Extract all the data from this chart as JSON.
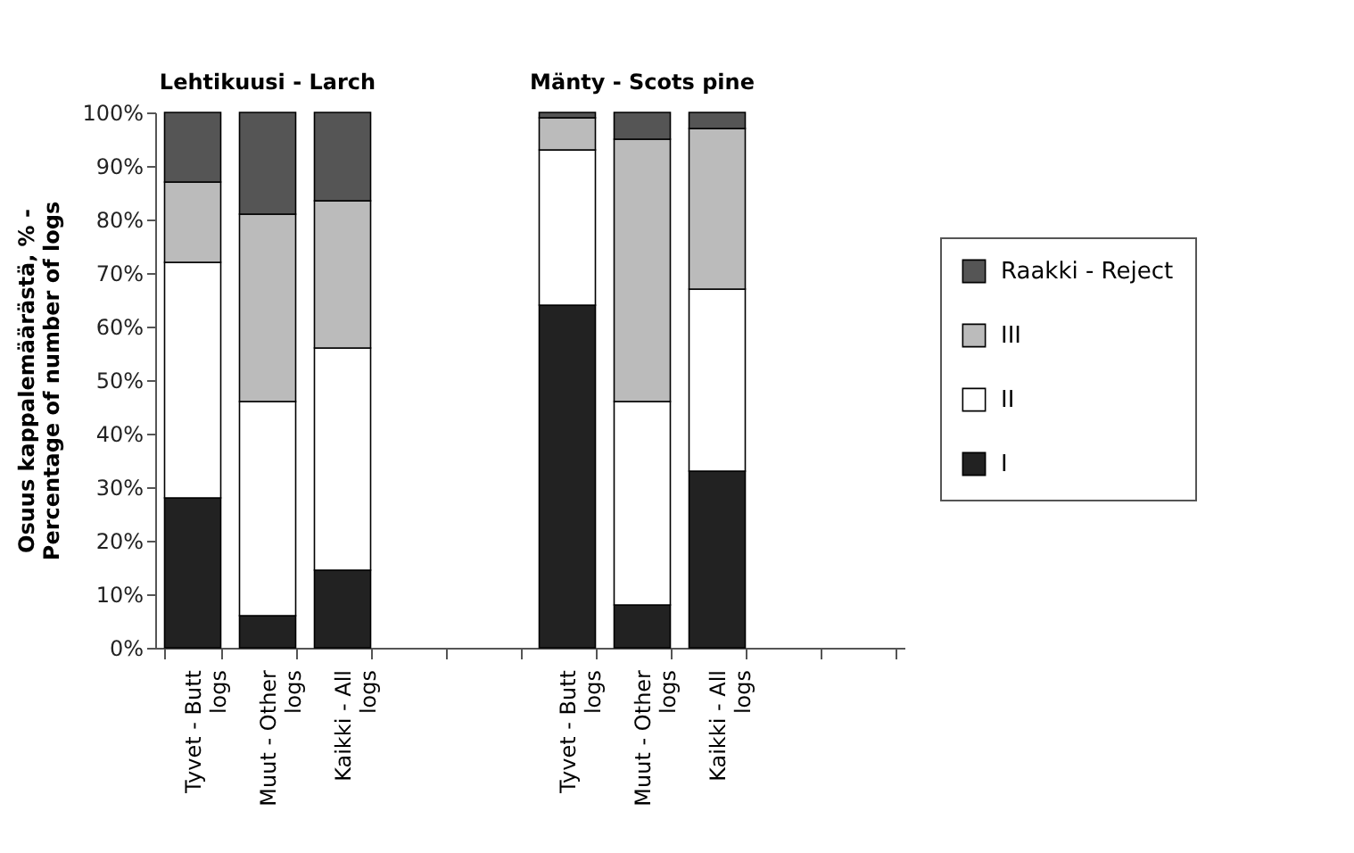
{
  "chart_data": {
    "type": "bar",
    "stacked": true,
    "ylabel": "Osuus kappalemäärästä, % - Percentage of number of logs",
    "annotations": [
      "Lehtikuusi - Larch",
      "Mänty - Scots pine"
    ],
    "categories": [
      "Tyvet - Butt logs",
      "Muut - Other logs",
      "Kaikki - All logs",
      null,
      null,
      "Tyvet - Butt logs",
      "Muut - Other logs",
      "Kaikki - All logs",
      null,
      null
    ],
    "series": [
      {
        "name": "I",
        "color": "#222222",
        "values": [
          28,
          6,
          14.5,
          null,
          null,
          64,
          8,
          33,
          null,
          null
        ]
      },
      {
        "name": "II",
        "color": "#ffffff",
        "values": [
          44,
          40,
          41.5,
          null,
          null,
          29,
          38,
          34,
          null,
          null
        ]
      },
      {
        "name": "III",
        "color": "#bbbbbb",
        "values": [
          15,
          35,
          27.5,
          null,
          null,
          6,
          49,
          30,
          null,
          null
        ]
      },
      {
        "name": "Raakki - Reject",
        "color": "#555555",
        "values": [
          13,
          19,
          16.5,
          null,
          null,
          1,
          5,
          3,
          null,
          null
        ]
      }
    ],
    "ylim": [
      0,
      100
    ],
    "yticks": [
      {
        "value": 0,
        "label": "0%"
      },
      {
        "value": 10,
        "label": "10%"
      },
      {
        "value": 20,
        "label": "20%"
      },
      {
        "value": 30,
        "label": "30%"
      },
      {
        "value": 40,
        "label": "40%"
      },
      {
        "value": 50,
        "label": "50%"
      },
      {
        "value": 60,
        "label": "60%"
      },
      {
        "value": 70,
        "label": "70%"
      },
      {
        "value": 80,
        "label": "80%"
      },
      {
        "value": 90,
        "label": "90%"
      },
      {
        "value": 100,
        "label": "100%"
      }
    ],
    "legend": "right",
    "grid": false
  }
}
